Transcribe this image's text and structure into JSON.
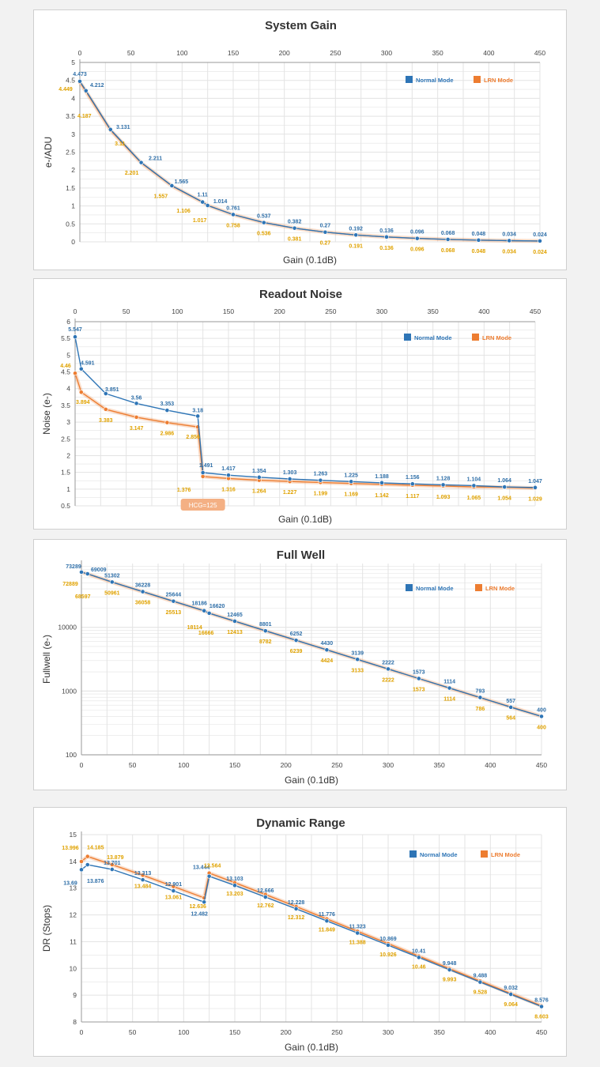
{
  "colors": {
    "normal": "#2e75b6",
    "lrn": "#ed7d31",
    "normal_label": "#2f6fa8",
    "lrn_label": "#e0a200",
    "grid": "#e3e3e3"
  },
  "chart_data": [
    {
      "type": "line",
      "title": "System Gain",
      "xlabel": "Gain (0.1dB)",
      "ylabel": "e-/ADU",
      "xlim": [
        0,
        450
      ],
      "ylim": [
        0,
        5
      ],
      "x_ticks": [
        "0",
        "50",
        "100",
        "150",
        "200",
        "250",
        "300",
        "350",
        "400",
        "450"
      ],
      "y_ticks": [
        "0",
        "0.5",
        "1",
        "1.5",
        "2",
        "2.5",
        "3",
        "3.5",
        "4",
        "4.5",
        "5"
      ],
      "legend": [
        "Normal Mode",
        "LRN Mode"
      ],
      "series": [
        {
          "name": "Normal Mode",
          "x": [
            0,
            6,
            30,
            60,
            90,
            120,
            125,
            150,
            180,
            210,
            240,
            270,
            300,
            330,
            360,
            390,
            420,
            450
          ],
          "values": [
            4.473,
            4.212,
            3.131,
            2.211,
            1.565,
            1.11,
            1.014,
            0.761,
            0.537,
            0.382,
            0.27,
            0.192,
            0.136,
            0.096,
            0.068,
            0.048,
            0.034,
            0.024
          ],
          "labels": [
            "4.473",
            "4.212",
            "3.131",
            "2.211",
            "1.565",
            "1.11",
            "1.014",
            "0.761",
            "0.537",
            "0.382",
            "0.27",
            "0.192",
            "0.136",
            "0.096",
            "0.068",
            "0.048",
            "0.034",
            "0.024"
          ]
        },
        {
          "name": "LRN Mode",
          "x": [
            0,
            6,
            30,
            60,
            90,
            120,
            125,
            150,
            180,
            210,
            240,
            270,
            300,
            330,
            360,
            390,
            420,
            450
          ],
          "values": [
            4.449,
            4.187,
            3.11,
            2.201,
            1.557,
            1.106,
            1.017,
            0.758,
            0.536,
            0.381,
            0.27,
            0.191,
            0.136,
            0.096,
            0.068,
            0.048,
            0.034,
            0.024
          ],
          "labels": [
            "4.449",
            "4.187",
            "3.11",
            "2.201",
            "1.557",
            "1.106",
            "1.017",
            "0.758",
            "0.536",
            "0.381",
            "0.27",
            "0.191",
            "0.136",
            "0.096",
            "0.068",
            "0.048",
            "0.034",
            "0.024"
          ]
        }
      ]
    },
    {
      "type": "line",
      "title": "Readout Noise",
      "xlabel": "Gain (0.1dB)",
      "ylabel": "Noise (e-)",
      "xlim": [
        0,
        450
      ],
      "ylim": [
        0.5,
        6
      ],
      "x_ticks": [
        "0",
        "50",
        "100",
        "150",
        "200",
        "250",
        "300",
        "350",
        "400",
        "450"
      ],
      "y_ticks": [
        "0.5",
        "1",
        "1.5",
        "2",
        "2.5",
        "3",
        "3.5",
        "4",
        "4.5",
        "5",
        "5.5",
        "6"
      ],
      "legend": [
        "Normal Mode",
        "LRN Mode"
      ],
      "annotation": "HCG=125",
      "series": [
        {
          "name": "Normal Mode",
          "x": [
            0,
            6,
            30,
            60,
            90,
            120,
            125,
            150,
            180,
            210,
            240,
            270,
            300,
            330,
            360,
            390,
            420,
            450
          ],
          "values": [
            5.547,
            4.591,
            3.851,
            3.56,
            3.353,
            3.18,
            1.491,
            1.417,
            1.354,
            1.303,
            1.263,
            1.225,
            1.188,
            1.156,
            1.128,
            1.104,
            1.064,
            1.047
          ],
          "labels": [
            "5.547",
            "4.591",
            "3.851",
            "3.56",
            "3.353",
            "3.18",
            "1.491",
            "1.417",
            "1.354",
            "1.303",
            "1.263",
            "1.225",
            "1.188",
            "1.156",
            "1.128",
            "1.104",
            "1.064",
            "1.047"
          ]
        },
        {
          "name": "LRN Mode",
          "x": [
            0,
            6,
            30,
            60,
            90,
            120,
            125,
            150,
            180,
            210,
            240,
            270,
            300,
            330,
            360,
            390,
            420,
            450
          ],
          "values": [
            4.46,
            3.894,
            3.383,
            3.147,
            2.986,
            2.856,
            1.376,
            1.316,
            1.264,
            1.227,
            1.199,
            1.169,
            1.142,
            1.117,
            1.093,
            1.065,
            1.054,
            1.029
          ],
          "labels": [
            "4.46",
            "3.894",
            "3.383",
            "3.147",
            "2.986",
            "2.856",
            "1.376",
            "1.316",
            "1.264",
            "1.227",
            "1.199",
            "1.169",
            "1.142",
            "1.117",
            "1.093",
            "1.065",
            "1.054",
            "1.029"
          ]
        }
      ]
    },
    {
      "type": "line",
      "title": "Full Well",
      "xlabel": "Gain (0.1dB)",
      "ylabel": "Fullwell (e-)",
      "xlim": [
        0,
        450
      ],
      "ylim": [
        100,
        100000
      ],
      "yscale": "log",
      "x_ticks": [
        "0",
        "50",
        "100",
        "150",
        "200",
        "250",
        "300",
        "350",
        "400",
        "450"
      ],
      "y_ticks": [
        "100",
        "1000",
        "10000"
      ],
      "legend": [
        "Normal Mode",
        "LRN Mode"
      ],
      "series": [
        {
          "name": "Normal Mode",
          "x": [
            0,
            6,
            30,
            60,
            90,
            120,
            125,
            150,
            180,
            210,
            240,
            270,
            300,
            330,
            360,
            390,
            420,
            450
          ],
          "values": [
            73289,
            69009,
            51302,
            36228,
            25644,
            18186,
            16620,
            12465,
            8801,
            6252,
            4430,
            3139,
            2222,
            1573,
            1114,
            793,
            557,
            400
          ],
          "labels": [
            "73289",
            "69009",
            "51302",
            "36228",
            "25644",
            "18186",
            "16620",
            "12465",
            "8801",
            "6252",
            "4430",
            "3139",
            "2222",
            "1573",
            "1114",
            "793",
            "557",
            "400"
          ]
        },
        {
          "name": "LRN Mode",
          "x": [
            0,
            6,
            30,
            60,
            90,
            120,
            125,
            150,
            180,
            210,
            240,
            270,
            300,
            330,
            360,
            390,
            420,
            450
          ],
          "values": [
            72889,
            68597,
            50961,
            36058,
            25513,
            18114,
            16666,
            12413,
            8782,
            6239,
            4424,
            3133,
            2222,
            1573,
            1114,
            786,
            564,
            400
          ],
          "labels": [
            "72889",
            "68597",
            "50961",
            "36058",
            "25513",
            "18114",
            "16666",
            "12413",
            "8782",
            "6239",
            "4424",
            "3133",
            "2222",
            "1573",
            "1114",
            "786",
            "564",
            "400"
          ]
        }
      ]
    },
    {
      "type": "line",
      "title": "Dynamic Range",
      "xlabel": "Gain (0.1dB)",
      "ylabel": "DR (Stops)",
      "xlim": [
        0,
        450
      ],
      "ylim": [
        8,
        15
      ],
      "x_ticks": [
        "0",
        "50",
        "100",
        "150",
        "200",
        "250",
        "300",
        "350",
        "400",
        "450"
      ],
      "y_ticks": [
        "8",
        "9",
        "10",
        "11",
        "12",
        "13",
        "14",
        "15"
      ],
      "legend": [
        "Normal Mode",
        "LRN Mode"
      ],
      "series": [
        {
          "name": "Normal Mode",
          "x": [
            0,
            6,
            30,
            60,
            90,
            120,
            125,
            150,
            180,
            210,
            240,
            270,
            300,
            330,
            360,
            390,
            420,
            450
          ],
          "values": [
            13.69,
            13.876,
            13.701,
            13.313,
            12.901,
            12.482,
            13.444,
            13.103,
            12.666,
            12.228,
            11.776,
            11.323,
            10.869,
            10.41,
            9.948,
            9.488,
            9.032,
            8.576
          ],
          "labels": [
            "13.69",
            "13.876",
            "13.701",
            "13.313",
            "12.901",
            "12.482",
            "13.444",
            "13.103",
            "12.666",
            "12.228",
            "11.776",
            "11.323",
            "10.869",
            "10.41",
            "9.948",
            "9.488",
            "9.032",
            "8.576"
          ]
        },
        {
          "name": "LRN Mode",
          "x": [
            0,
            6,
            30,
            60,
            90,
            120,
            125,
            150,
            180,
            210,
            240,
            270,
            300,
            330,
            360,
            390,
            420,
            450
          ],
          "values": [
            13.996,
            14.185,
            13.879,
            13.484,
            13.061,
            12.636,
            13.564,
            13.203,
            12.762,
            12.312,
            11.849,
            11.388,
            10.926,
            10.46,
            9.993,
            9.528,
            9.064,
            8.603
          ],
          "labels": [
            "13.996",
            "14.185",
            "13.879",
            "13.484",
            "13.061",
            "12.636",
            "13.564",
            "13.203",
            "12.762",
            "12.312",
            "11.849",
            "11.388",
            "10.926",
            "10.46",
            "9.993",
            "9.528",
            "9.064",
            "8.603"
          ]
        }
      ]
    }
  ]
}
